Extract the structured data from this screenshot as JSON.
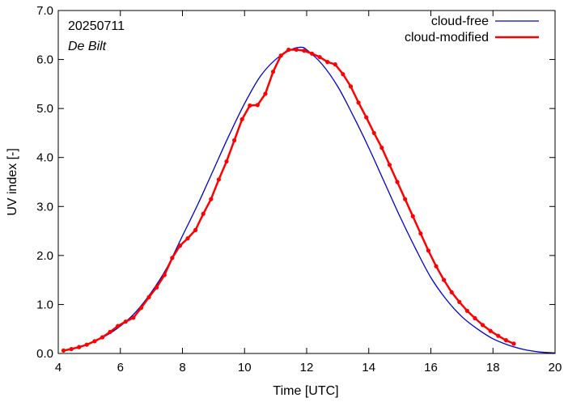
{
  "chart_data": {
    "type": "line",
    "xlabel": "Time  [UTC]",
    "ylabel": "UV index  [-]",
    "xlim": [
      4,
      20
    ],
    "ylim": [
      0,
      7
    ],
    "xticks": [
      4,
      6,
      8,
      10,
      12,
      14,
      16,
      18,
      20
    ],
    "xtick_labels": [
      "4",
      "6",
      "8",
      "10",
      "12",
      "14",
      "16",
      "18",
      "20"
    ],
    "yticks": [
      0,
      1,
      2,
      3,
      4,
      5,
      6,
      7
    ],
    "ytick_labels": [
      "0.0",
      "1.0",
      "2.0",
      "3.0",
      "4.0",
      "5.0",
      "6.0",
      "7.0"
    ],
    "annotations": {
      "date": "20250711",
      "station": "De Bilt"
    },
    "legend_position": "top-right",
    "grid": false,
    "series": [
      {
        "name": "cloud-free",
        "color": "#0000cc",
        "style": "line",
        "x": [
          4.2,
          4.5,
          5.0,
          5.5,
          6.0,
          6.5,
          7.0,
          7.5,
          8.0,
          8.5,
          9.0,
          9.5,
          10.0,
          10.5,
          11.0,
          11.5,
          11.8,
          12.0,
          12.5,
          13.0,
          13.5,
          14.0,
          14.5,
          15.0,
          15.5,
          16.0,
          16.5,
          17.0,
          17.5,
          18.0,
          18.5,
          19.0,
          19.5,
          20.0
        ],
        "y": [
          0.07,
          0.1,
          0.2,
          0.35,
          0.56,
          0.85,
          1.25,
          1.75,
          2.4,
          3.05,
          3.75,
          4.45,
          5.1,
          5.65,
          6.0,
          6.2,
          6.25,
          6.2,
          5.9,
          5.45,
          4.85,
          4.2,
          3.5,
          2.8,
          2.15,
          1.55,
          1.1,
          0.75,
          0.5,
          0.3,
          0.17,
          0.08,
          0.03,
          0.01
        ]
      },
      {
        "name": "cloud-modified",
        "color": "#ff0000",
        "style": "line-markers",
        "x": [
          4.17,
          4.42,
          4.67,
          4.92,
          5.17,
          5.42,
          5.67,
          5.92,
          6.17,
          6.42,
          6.67,
          6.92,
          7.17,
          7.42,
          7.67,
          7.92,
          8.17,
          8.42,
          8.67,
          8.92,
          9.17,
          9.42,
          9.67,
          9.92,
          10.17,
          10.42,
          10.67,
          10.92,
          11.17,
          11.42,
          11.67,
          11.92,
          12.17,
          12.42,
          12.67,
          12.92,
          13.17,
          13.42,
          13.67,
          13.92,
          14.17,
          14.42,
          14.67,
          14.92,
          15.17,
          15.42,
          15.67,
          15.92,
          16.17,
          16.42,
          16.67,
          16.92,
          17.17,
          17.42,
          17.67,
          17.92,
          18.17,
          18.42,
          18.67
        ],
        "y": [
          0.06,
          0.09,
          0.13,
          0.18,
          0.25,
          0.33,
          0.44,
          0.56,
          0.65,
          0.73,
          0.93,
          1.15,
          1.35,
          1.6,
          1.95,
          2.2,
          2.35,
          2.52,
          2.85,
          3.15,
          3.55,
          3.92,
          4.35,
          4.78,
          5.06,
          5.07,
          5.3,
          5.75,
          6.08,
          6.2,
          6.2,
          6.18,
          6.12,
          6.05,
          5.95,
          5.9,
          5.7,
          5.45,
          5.12,
          4.82,
          4.5,
          4.2,
          3.85,
          3.5,
          3.15,
          2.8,
          2.45,
          2.1,
          1.78,
          1.5,
          1.25,
          1.05,
          0.87,
          0.72,
          0.58,
          0.46,
          0.36,
          0.27,
          0.2
        ]
      }
    ]
  }
}
